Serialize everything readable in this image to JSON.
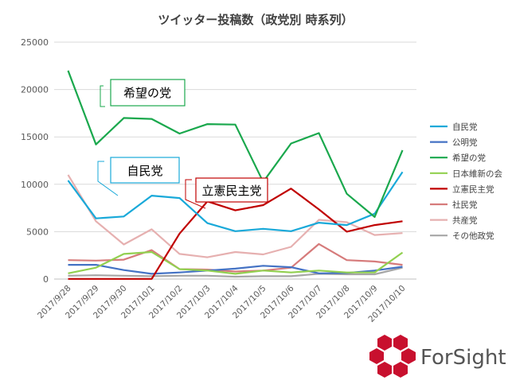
{
  "chart_data": {
    "type": "line",
    "title": "ツイッター投稿数（政党別 時系列）",
    "categories": [
      "2017/9/28",
      "2017/9/29",
      "2017/9/30",
      "2017/10/1",
      "2017/10/2",
      "2017/10/3",
      "2017/10/4",
      "2017/10/5",
      "2017/10/6",
      "2017/10/7",
      "2017/10/8",
      "2017/10/9",
      "2017/10/10"
    ],
    "ylim": [
      0,
      25000
    ],
    "yticks": [
      "0",
      "5000",
      "10000",
      "15000",
      "20000",
      "25000"
    ],
    "grid": true,
    "legend_position": "right",
    "series": [
      {
        "name": "自民党",
        "color": "#19a9d9",
        "values": [
          10400,
          6400,
          6600,
          8800,
          8550,
          5900,
          5050,
          5300,
          5050,
          5950,
          5700,
          6900,
          11300
        ]
      },
      {
        "name": "公明党",
        "color": "#4472c4",
        "values": [
          1500,
          1500,
          950,
          550,
          700,
          900,
          1100,
          1400,
          1250,
          600,
          650,
          900,
          1300
        ]
      },
      {
        "name": "希望の党",
        "color": "#1aa84d",
        "values": [
          22000,
          14200,
          17000,
          16900,
          15350,
          16350,
          16300,
          10250,
          14300,
          15400,
          9000,
          6550,
          13600
        ]
      },
      {
        "name": "日本維新の会",
        "color": "#92d050",
        "values": [
          600,
          1200,
          2650,
          2850,
          1050,
          900,
          550,
          900,
          700,
          900,
          700,
          700,
          2800
        ]
      },
      {
        "name": "立憲民主党",
        "color": "#c00000",
        "values": [
          20,
          20,
          20,
          20,
          4800,
          8200,
          7250,
          7800,
          9550,
          7350,
          5000,
          5700,
          6100
        ]
      },
      {
        "name": "社民党",
        "color": "#d67b7b",
        "values": [
          2000,
          1950,
          2050,
          3050,
          1050,
          1000,
          800,
          900,
          1200,
          3700,
          2000,
          1850,
          1500
        ]
      },
      {
        "name": "共産党",
        "color": "#e6b0b0",
        "values": [
          11000,
          6100,
          3650,
          5250,
          2650,
          2300,
          2850,
          2600,
          3400,
          6250,
          6000,
          4650,
          4850
        ]
      },
      {
        "name": "その他政党",
        "color": "#a6a6a6",
        "values": [
          350,
          400,
          350,
          300,
          350,
          350,
          250,
          300,
          300,
          550,
          500,
          500,
          1200
        ]
      }
    ],
    "annotations": [
      {
        "label": "希望の党",
        "color": "#1aa84d"
      },
      {
        "label": "自民党",
        "color": "#19a9d9"
      },
      {
        "label": "立憲民主党",
        "color": "#c00000"
      }
    ]
  },
  "logo": {
    "text": "ForSight",
    "color": "#c8102e"
  }
}
